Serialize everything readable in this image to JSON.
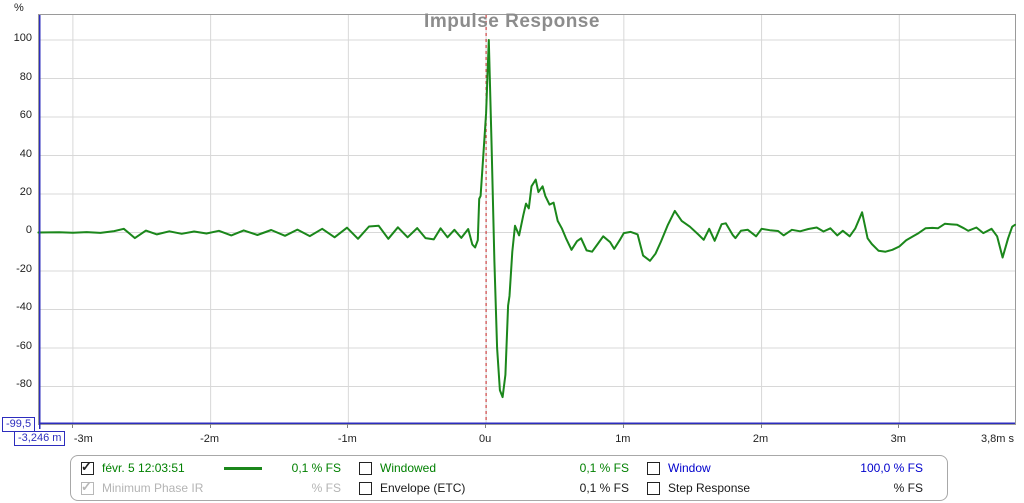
{
  "chart_data": {
    "type": "line",
    "title": "Impulse Response",
    "y_unit": "%",
    "x_unit": "ms",
    "xlim": [
      -3.246,
      3.84
    ],
    "ylim": [
      -99.5,
      113
    ],
    "grid": true,
    "y_ticks": [
      100,
      80,
      60,
      40,
      20,
      0,
      -20,
      -40,
      -60,
      -80
    ],
    "x_ticks": [
      {
        "value": -3,
        "label": "-3m",
        "anchor": "left"
      },
      {
        "value": -2,
        "label": "-2m",
        "anchor": "center"
      },
      {
        "value": -1,
        "label": "-1m",
        "anchor": "center"
      },
      {
        "value": 0,
        "label": "0u",
        "anchor": "center"
      },
      {
        "value": 1,
        "label": "1m",
        "anchor": "center"
      },
      {
        "value": 2,
        "label": "2m",
        "anchor": "center"
      },
      {
        "value": 3,
        "label": "3m",
        "anchor": "center"
      },
      {
        "value": 3.84,
        "label": "3,8m s",
        "anchor": "right",
        "grid": false
      }
    ],
    "time_zero_marker": {
      "x": 0,
      "color": "#cc4343",
      "style": "dashed"
    },
    "cursor": {
      "x": -3.246,
      "y": -99.5,
      "x_label": "-3,246 m",
      "y_label": "-99,5",
      "color": "#2d2dbe"
    },
    "grid_color": "#d8d8d8",
    "series": [
      {
        "name": "févr. 5 12:03:51",
        "color": "#1b871b",
        "points": [
          [
            -3.25,
            0
          ],
          [
            -3.1,
            0.1
          ],
          [
            -3.0,
            -0.1
          ],
          [
            -2.9,
            0.2
          ],
          [
            -2.8,
            -0.2
          ],
          [
            -2.7,
            0.7
          ],
          [
            -2.63,
            1.9
          ],
          [
            -2.55,
            -2.9
          ],
          [
            -2.47,
            1.0
          ],
          [
            -2.39,
            -1.0
          ],
          [
            -2.3,
            0.6
          ],
          [
            -2.21,
            -0.7
          ],
          [
            -2.12,
            0.5
          ],
          [
            -2.03,
            -0.5
          ],
          [
            -1.94,
            0.9
          ],
          [
            -1.85,
            -1.5
          ],
          [
            -1.76,
            1.1
          ],
          [
            -1.66,
            -1.3
          ],
          [
            -1.56,
            1.3
          ],
          [
            -1.46,
            -1.7
          ],
          [
            -1.37,
            1.5
          ],
          [
            -1.28,
            -1.9
          ],
          [
            -1.19,
            1.9
          ],
          [
            -1.1,
            -2.5
          ],
          [
            -1.01,
            2.5
          ],
          [
            -0.93,
            -3.3
          ],
          [
            -0.85,
            3.1
          ],
          [
            -0.78,
            3.5
          ],
          [
            -0.71,
            -3.3
          ],
          [
            -0.64,
            2.7
          ],
          [
            -0.57,
            -2.5
          ],
          [
            -0.5,
            2.3
          ],
          [
            -0.44,
            -2.9
          ],
          [
            -0.38,
            -3.6
          ],
          [
            -0.33,
            2.2
          ],
          [
            -0.28,
            -2.5
          ],
          [
            -0.23,
            1.4
          ],
          [
            -0.18,
            -2.8
          ],
          [
            -0.13,
            1.8
          ],
          [
            -0.1,
            -6.2
          ],
          [
            -0.08,
            -7.8
          ],
          [
            -0.06,
            -4
          ],
          [
            -0.05,
            17.5
          ],
          [
            -0.04,
            19
          ],
          [
            -0.02,
            40
          ],
          [
            0.0,
            62
          ],
          [
            0.02,
            100
          ],
          [
            0.04,
            45
          ],
          [
            0.06,
            -15
          ],
          [
            0.08,
            -60
          ],
          [
            0.1,
            -82
          ],
          [
            0.12,
            -85.5
          ],
          [
            0.14,
            -74
          ],
          [
            0.16,
            -38
          ],
          [
            0.17,
            -33
          ],
          [
            0.19,
            -10
          ],
          [
            0.21,
            3.5
          ],
          [
            0.24,
            -1.5
          ],
          [
            0.27,
            9
          ],
          [
            0.29,
            15
          ],
          [
            0.31,
            12.5
          ],
          [
            0.33,
            24
          ],
          [
            0.36,
            27.5
          ],
          [
            0.38,
            21
          ],
          [
            0.41,
            24
          ],
          [
            0.43,
            19
          ],
          [
            0.46,
            14.5
          ],
          [
            0.49,
            15.5
          ],
          [
            0.52,
            6
          ],
          [
            0.55,
            2.2
          ],
          [
            0.58,
            -3
          ],
          [
            0.62,
            -9
          ],
          [
            0.66,
            -4.5
          ],
          [
            0.69,
            -3
          ],
          [
            0.73,
            -9.3
          ],
          [
            0.77,
            -10
          ],
          [
            0.81,
            -6
          ],
          [
            0.85,
            -2
          ],
          [
            0.9,
            -5
          ],
          [
            0.93,
            -8.5
          ],
          [
            0.97,
            -4
          ],
          [
            1.0,
            -0.3
          ],
          [
            1.05,
            0.3
          ],
          [
            1.1,
            -1
          ],
          [
            1.14,
            -12
          ],
          [
            1.19,
            -14.7
          ],
          [
            1.23,
            -11
          ],
          [
            1.27,
            -4.7
          ],
          [
            1.32,
            4
          ],
          [
            1.37,
            11.2
          ],
          [
            1.42,
            6
          ],
          [
            1.48,
            3
          ],
          [
            1.54,
            -1
          ],
          [
            1.58,
            -3.8
          ],
          [
            1.62,
            1.9
          ],
          [
            1.66,
            -4.3
          ],
          [
            1.71,
            4.3
          ],
          [
            1.74,
            4.8
          ],
          [
            1.79,
            -1.2
          ],
          [
            1.81,
            -2.9
          ],
          [
            1.85,
            0.9
          ],
          [
            1.9,
            1.4
          ],
          [
            1.96,
            -2
          ],
          [
            2.0,
            1.9
          ],
          [
            2.06,
            1.2
          ],
          [
            2.12,
            0.8
          ],
          [
            2.16,
            -1.5
          ],
          [
            2.22,
            1.4
          ],
          [
            2.28,
            0.6
          ],
          [
            2.34,
            1.8
          ],
          [
            2.4,
            2.6
          ],
          [
            2.45,
            0.5
          ],
          [
            2.5,
            2.2
          ],
          [
            2.55,
            -1.5
          ],
          [
            2.59,
            0.9
          ],
          [
            2.64,
            -2
          ],
          [
            2.68,
            2
          ],
          [
            2.73,
            10.5
          ],
          [
            2.77,
            -3
          ],
          [
            2.8,
            -6
          ],
          [
            2.85,
            -9.5
          ],
          [
            2.9,
            -10
          ],
          [
            2.95,
            -9
          ],
          [
            3.0,
            -7.3
          ],
          [
            3.05,
            -4
          ],
          [
            3.1,
            -2
          ],
          [
            3.14,
            -0.3
          ],
          [
            3.19,
            2.2
          ],
          [
            3.24,
            2.4
          ],
          [
            3.28,
            2.2
          ],
          [
            3.33,
            4.5
          ],
          [
            3.38,
            4.2
          ],
          [
            3.42,
            4
          ],
          [
            3.47,
            2.2
          ],
          [
            3.5,
            0.9
          ],
          [
            3.56,
            2.6
          ],
          [
            3.61,
            -0.3
          ],
          [
            3.67,
            1.9
          ],
          [
            3.71,
            -2
          ],
          [
            3.75,
            -13
          ],
          [
            3.79,
            -3
          ],
          [
            3.82,
            3
          ],
          [
            3.84,
            4
          ]
        ]
      }
    ]
  },
  "cursor": {
    "y_label": "-99,5",
    "x_label": "-3,246 m"
  },
  "legend": {
    "entries": [
      {
        "label": "févr. 5 12:03:51",
        "value": "0,1 % FS",
        "color": "#008000",
        "checked": true,
        "disabled": false,
        "sample": true
      },
      {
        "label": "Minimum Phase IR",
        "value": "% FS",
        "color": "#b4b4b4",
        "checked": true,
        "disabled": true,
        "sample": false
      },
      {
        "label": "Windowed",
        "value": "0,1 % FS",
        "color": "#008000",
        "checked": false,
        "disabled": false,
        "sample": false
      },
      {
        "label": "Envelope (ETC)",
        "value": "0,1 % FS",
        "color": "#1a1a1a",
        "checked": false,
        "disabled": false,
        "sample": false
      },
      {
        "label": "Window",
        "value": "100,0 % FS",
        "color": "#0000cc",
        "checked": false,
        "disabled": false,
        "sample": false
      },
      {
        "label": "Step Response",
        "value": "% FS",
        "color": "#1a1a1a",
        "checked": false,
        "disabled": false,
        "sample": false
      }
    ]
  }
}
